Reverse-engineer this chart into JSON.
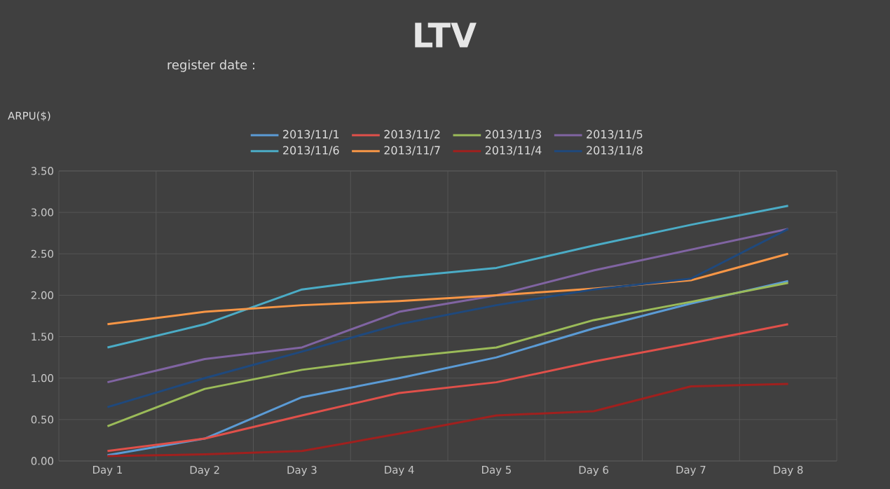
{
  "chart_data": {
    "type": "line",
    "title": "LTV",
    "ylabel": "ARPU($)",
    "legend_title": "register date :",
    "legend": "top",
    "grid": true,
    "marker": "none",
    "line_style": "solid",
    "categories": [
      "Day 1",
      "Day 2",
      "Day 3",
      "Day 4",
      "Day 5",
      "Day 6",
      "Day 7",
      "Day 8"
    ],
    "ylim": [
      0,
      3.5
    ],
    "yticks": [
      {
        "value": 0,
        "label": "0.00"
      },
      {
        "value": 0.5,
        "label": "0.50"
      },
      {
        "value": 1,
        "label": "1.00"
      },
      {
        "value": 1.5,
        "label": "1.50"
      },
      {
        "value": 2,
        "label": "2.00"
      },
      {
        "value": 2.5,
        "label": "2.50"
      },
      {
        "value": 3,
        "label": "3.00"
      },
      {
        "value": 3.5,
        "label": "3.50"
      }
    ],
    "series": [
      {
        "name": "2013/11/1",
        "color": "#5b9bd5",
        "values": [
          0.07,
          0.27,
          0.77,
          1.0,
          1.25,
          1.6,
          1.9,
          2.17
        ]
      },
      {
        "name": "2013/11/2",
        "color": "#e0504a",
        "values": [
          0.12,
          0.27,
          0.55,
          0.82,
          0.95,
          1.2,
          1.42,
          1.65
        ]
      },
      {
        "name": "2013/11/3",
        "color": "#9bbb59",
        "values": [
          0.42,
          0.87,
          1.1,
          1.25,
          1.37,
          1.7,
          1.92,
          2.15
        ]
      },
      {
        "name": "2013/11/5",
        "color": "#8064a2",
        "values": [
          0.95,
          1.23,
          1.37,
          1.8,
          2.0,
          2.3,
          2.55,
          2.8
        ]
      },
      {
        "name": "2013/11/6",
        "color": "#4bacc6",
        "values": [
          1.37,
          1.65,
          2.07,
          2.22,
          2.33,
          2.6,
          2.85,
          3.08
        ]
      },
      {
        "name": "2013/11/7",
        "color": "#f79646",
        "values": [
          1.65,
          1.8,
          1.88,
          1.93,
          2.0,
          2.08,
          2.18,
          2.5
        ]
      },
      {
        "name": "2013/11/4",
        "color": "#a0201e",
        "values": [
          0.06,
          0.08,
          0.12,
          0.33,
          0.55,
          0.6,
          0.9,
          0.93
        ]
      },
      {
        "name": "2013/11/8",
        "color": "#1f497d",
        "values": [
          0.65,
          1.0,
          1.32,
          1.65,
          1.88,
          2.07,
          2.2,
          2.8
        ]
      }
    ]
  }
}
